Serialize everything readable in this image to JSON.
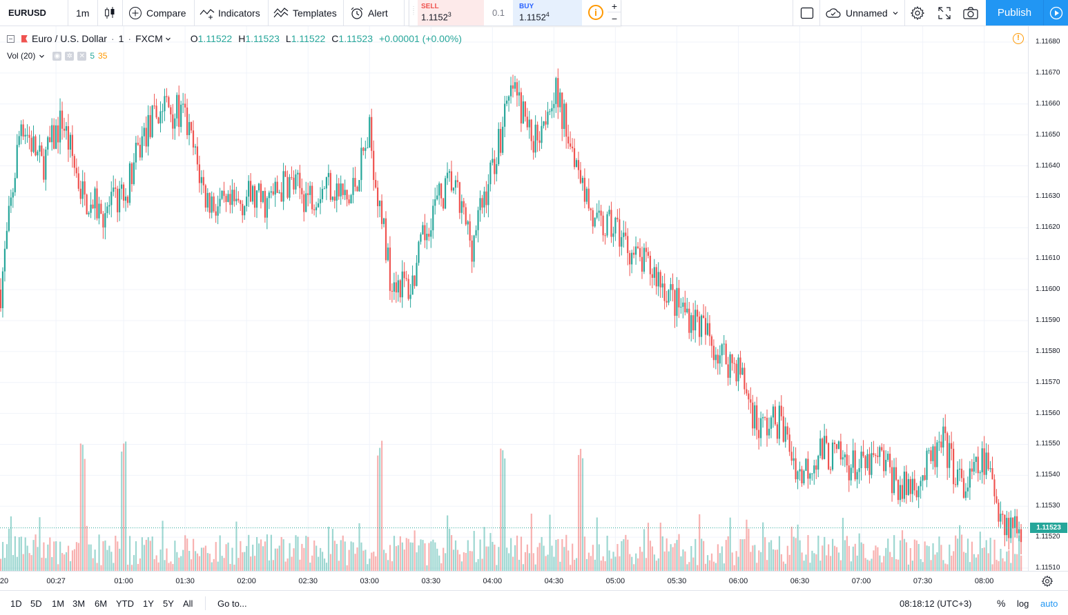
{
  "toolbar": {
    "symbol": "EURUSD",
    "interval": "1m",
    "compare": "Compare",
    "indicators": "Indicators",
    "templates": "Templates",
    "alert": "Alert",
    "layout_name": "Unnamed",
    "publish": "Publish"
  },
  "trade": {
    "sell_label": "SELL",
    "sell_price": "1.1152",
    "sell_pip": "3",
    "spread": "0.1",
    "buy_label": "BUY",
    "buy_price": "1.1152",
    "buy_pip": "4",
    "plus": "+",
    "minus": "−"
  },
  "legend": {
    "title": "Euro / U.S. Dollar",
    "interval": "1",
    "exchange": "FXCM",
    "o_label": "O",
    "o": "1.11522",
    "h_label": "H",
    "h": "1.11523",
    "l_label": "L",
    "l": "1.11522",
    "c_label": "C",
    "c": "1.11523",
    "change": "+0.00001 (+0.00%)",
    "vol_name": "Vol (20)",
    "vol_a": "5",
    "vol_b": "35"
  },
  "price_axis": {
    "labels": [
      "1.11680",
      "1.11670",
      "1.11660",
      "1.11650",
      "1.11640",
      "1.11630",
      "1.11620",
      "1.11610",
      "1.11600",
      "1.11590",
      "1.11580",
      "1.11570",
      "1.11560",
      "1.11550",
      "1.11540",
      "1.11530",
      "1.11520",
      "1.11510"
    ],
    "last_price": "1.11523"
  },
  "time_axis": {
    "labels": [
      "20",
      "00:27",
      "01:00",
      "01:30",
      "02:00",
      "02:30",
      "03:00",
      "03:30",
      "04:00",
      "04:30",
      "05:00",
      "05:30",
      "06:00",
      "06:30",
      "07:00",
      "07:30",
      "08:00"
    ]
  },
  "bottom": {
    "ranges": [
      "1D",
      "5D",
      "1M",
      "3M",
      "6M",
      "YTD",
      "1Y",
      "5Y",
      "All"
    ],
    "goto": "Go to...",
    "clock": "08:18:12 (UTC+3)",
    "percent": "%",
    "log": "log",
    "auto": "auto"
  },
  "colors": {
    "up": "#26a69a",
    "down": "#ef5350",
    "accent": "#2196f3",
    "grid": "#f0f3fa"
  },
  "chart_data": {
    "type": "candlestick",
    "symbol": "EURUSD",
    "interval_minutes": 1,
    "price_range": [
      1.1151,
      1.1168
    ],
    "last_price": 1.11523,
    "path_keypoints": {
      "time": [
        "00:00",
        "00:10",
        "00:20",
        "00:30",
        "00:40",
        "00:50",
        "01:00",
        "01:10",
        "01:20",
        "01:30",
        "01:40",
        "01:50",
        "02:00",
        "02:10",
        "02:20",
        "02:30",
        "02:40",
        "02:50",
        "03:00",
        "03:10",
        "03:20",
        "03:30",
        "03:40",
        "03:50",
        "04:00",
        "04:10",
        "04:20",
        "04:30",
        "04:40",
        "04:50",
        "05:00",
        "05:10",
        "05:20",
        "05:30",
        "05:40",
        "05:50",
        "06:00",
        "06:10",
        "06:20",
        "06:30",
        "06:40",
        "06:50",
        "07:00",
        "07:10",
        "07:20",
        "07:30",
        "07:40",
        "07:50",
        "08:00",
        "08:10",
        "08:18"
      ],
      "close": [
        1.116,
        1.11655,
        1.1164,
        1.11655,
        1.1163,
        1.11625,
        1.1163,
        1.1165,
        1.1166,
        1.11655,
        1.1163,
        1.11625,
        1.1163,
        1.11628,
        1.11635,
        1.1163,
        1.11635,
        1.11628,
        1.1165,
        1.11605,
        1.116,
        1.11625,
        1.11635,
        1.11615,
        1.1164,
        1.11665,
        1.11648,
        1.11665,
        1.11645,
        1.1162,
        1.1162,
        1.1161,
        1.11605,
        1.11595,
        1.1159,
        1.1158,
        1.11575,
        1.11555,
        1.11558,
        1.1154,
        1.11548,
        1.11545,
        1.11542,
        1.11545,
        1.11535,
        1.1154,
        1.1155,
        1.11535,
        1.11545,
        1.11525,
        1.11523
      ]
    },
    "volume_peaks": [
      {
        "time": "00:40",
        "value": "high"
      },
      {
        "time": "01:00",
        "value": "high"
      },
      {
        "time": "03:05",
        "value": "high"
      },
      {
        "time": "04:05",
        "value": "high"
      },
      {
        "time": "04:43",
        "value": "high"
      }
    ]
  }
}
